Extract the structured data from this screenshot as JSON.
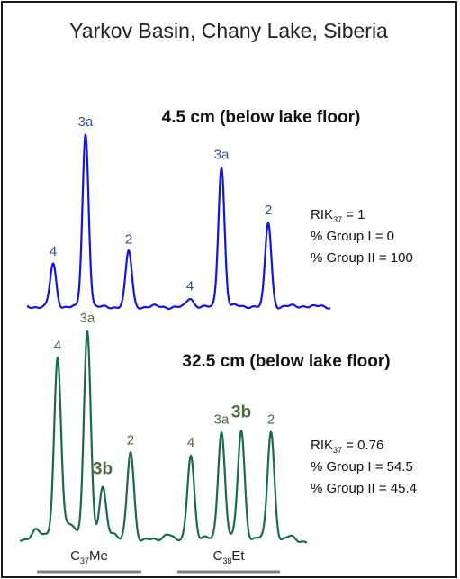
{
  "figure": {
    "title": "Yarkov Basin, Chany Lake, Siberia"
  },
  "colors": {
    "top_trace": "#1414e0",
    "top_labels": "#3a4fa0",
    "bottom_trace": "#1b6b4a",
    "bottom_labels": "#4a6b40",
    "group_bar": "#808080"
  },
  "chart_data": [
    {
      "type": "chromatogram",
      "subtitle": "4.5 cm (below lake floor)",
      "peaks": [
        {
          "label": "4",
          "relative_height": 0.25,
          "bold": false
        },
        {
          "label": "3a",
          "relative_height": 1.0,
          "bold": false
        },
        {
          "label": "2",
          "relative_height": 0.32,
          "bold": false
        },
        {
          "label": "4",
          "relative_height": 0.05,
          "bold": false
        },
        {
          "label": "3a",
          "relative_height": 0.81,
          "bold": false
        },
        {
          "label": "2",
          "relative_height": 0.49,
          "bold": false
        }
      ],
      "stats": {
        "rik_prefix": "RIK",
        "rik_sub": "37",
        "rik_value": " = 1",
        "group1": "% Group I = 0",
        "group2": "% Group II = 100"
      }
    },
    {
      "type": "chromatogram",
      "subtitle": "32.5 cm (below lake floor)",
      "peaks": [
        {
          "label": "4",
          "relative_height": 0.87,
          "bold": false
        },
        {
          "label": "3a",
          "relative_height": 1.0,
          "bold": false
        },
        {
          "label": "3b",
          "relative_height": 0.25,
          "bold": true
        },
        {
          "label": "2",
          "relative_height": 0.42,
          "bold": false
        },
        {
          "label": "4",
          "relative_height": 0.41,
          "bold": false
        },
        {
          "label": "3a",
          "relative_height": 0.52,
          "bold": false
        },
        {
          "label": "3b",
          "relative_height": 0.52,
          "bold": true
        },
        {
          "label": "2",
          "relative_height": 0.52,
          "bold": false
        }
      ],
      "stats": {
        "rik_prefix": "RIK",
        "rik_sub": "37",
        "rik_value": " = 0.76",
        "group1": "% Group I = 54.5",
        "group2": "% Group II = 45.4"
      },
      "groups": [
        {
          "main": "C",
          "sub": "37",
          "suffix": "Me"
        },
        {
          "main": "C",
          "sub": "38",
          "suffix": "Et"
        }
      ]
    }
  ]
}
